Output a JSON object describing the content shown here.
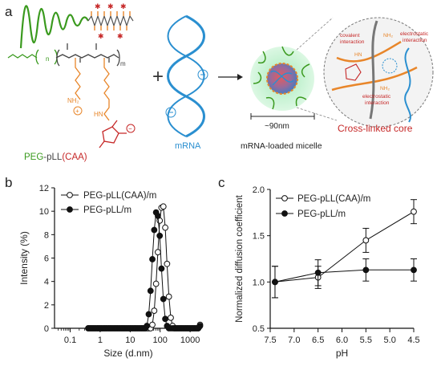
{
  "panel_a": {
    "panel_letter": "a",
    "polymer_label": {
      "peg": "PEG",
      "dash": "-",
      "pll": "pLL",
      "caa": "(CAA)"
    },
    "plus": "+",
    "mrna_label": "mRNA",
    "size_label": "~90nm",
    "micelle_label": "mRNA-loaded micelle",
    "core_label": "Cross-linked core",
    "inset": {
      "covalent": "covalent\ninteraction",
      "electrostatic_top": "electrostatic\ninteraction",
      "electrostatic_bottom": "electrostatic\ninteraction",
      "nh2": "NH₂",
      "hn": "HN"
    },
    "chem": {
      "n": "n",
      "m": "m",
      "nh2": "NH₂",
      "hn": "HN",
      "plus": "+",
      "minus": "−"
    },
    "colors": {
      "peg": "#3a9a1e",
      "pll": "#444444",
      "caa": "#c62828",
      "orange": "#e8862a",
      "mrna": "#2a8fd0",
      "micelle": "#b8f0c8"
    }
  },
  "panel_b": {
    "panel_letter": "b",
    "chart_data": {
      "type": "scatter",
      "xlabel": "Size (d.nm)",
      "ylabel": "Intensity (%)",
      "xscale": "log",
      "xlim": [
        0.03,
        2500
      ],
      "ylim": [
        0,
        12
      ],
      "xticks": [
        "0.1",
        "1",
        "10",
        "100",
        "1000"
      ],
      "yticks": [
        "0",
        "2",
        "4",
        "6",
        "8",
        "10",
        "12"
      ],
      "legend_position": "top-left",
      "series": [
        {
          "name": "PEG-pLL(CAA)/m",
          "marker": "open-circle",
          "x": [
            0.4,
            0.46,
            0.53,
            0.61,
            0.7,
            0.81,
            0.93,
            1.07,
            1.23,
            1.42,
            1.63,
            1.88,
            2.16,
            2.49,
            2.87,
            3.3,
            3.8,
            4.38,
            5.04,
            5.8,
            6.68,
            7.69,
            8.85,
            10.2,
            11.7,
            13.5,
            15.5,
            17.9,
            20.6,
            23.7,
            27.3,
            31.4,
            36.1,
            41.6,
            47.9,
            55.1,
            63.5,
            73.1,
            84.1,
            96.8,
            111,
            128,
            148,
            170,
            196,
            226,
            260,
            299,
            344,
            396,
            456,
            525,
            604,
            695,
            800,
            921,
            1060,
            1220,
            1405,
            1617,
            1862,
            2143
          ],
          "y": [
            0,
            0,
            0,
            0,
            0,
            0,
            0,
            0,
            0,
            0,
            0,
            0,
            0,
            0,
            0,
            0,
            0,
            0,
            0,
            0,
            0,
            0,
            0,
            0,
            0,
            0,
            0,
            0,
            0,
            0,
            0,
            0,
            0,
            0,
            0,
            0.3,
            1.5,
            3.8,
            6.5,
            9.2,
            10.3,
            10.4,
            8.6,
            5.5,
            2.7,
            0.9,
            0.2,
            0,
            0,
            0,
            0,
            0,
            0,
            0,
            0,
            0,
            0,
            0,
            0,
            0,
            0,
            0.3
          ]
        },
        {
          "name": "PEG-pLL/m",
          "marker": "filled-circle",
          "x": [
            0.4,
            0.46,
            0.53,
            0.61,
            0.7,
            0.81,
            0.93,
            1.07,
            1.23,
            1.42,
            1.63,
            1.88,
            2.16,
            2.49,
            2.87,
            3.3,
            3.8,
            4.38,
            5.04,
            5.8,
            6.68,
            7.69,
            8.85,
            10.2,
            11.7,
            13.5,
            15.5,
            17.9,
            20.6,
            23.7,
            27.3,
            31.4,
            36.1,
            41.6,
            47.9,
            55.1,
            63.5,
            73.1,
            84.1,
            96.8,
            111,
            128,
            148,
            170,
            196,
            226,
            260,
            299,
            344,
            396,
            456,
            525,
            604,
            695,
            800,
            921,
            1060,
            1220,
            1405,
            1617,
            1862,
            2143
          ],
          "y": [
            0,
            0,
            0,
            0,
            0,
            0,
            0,
            0,
            0,
            0,
            0,
            0,
            0,
            0,
            0,
            0,
            0,
            0,
            0,
            0,
            0,
            0,
            0,
            0,
            0,
            0,
            0,
            0,
            0,
            0,
            0,
            0,
            0.2,
            1.2,
            3.2,
            5.9,
            8.4,
            9.9,
            9.6,
            7.9,
            5.1,
            2.5,
            0.8,
            0.2,
            0,
            0,
            0,
            0,
            0,
            0,
            0,
            0,
            0,
            0,
            0,
            0,
            0,
            0,
            0,
            0,
            0,
            0.2
          ]
        }
      ]
    }
  },
  "panel_c": {
    "panel_letter": "c",
    "chart_data": {
      "type": "line",
      "xlabel": "pH",
      "ylabel": "Normalized diffusion coefficient",
      "x_reversed": true,
      "xlim": [
        7.5,
        4.5
      ],
      "ylim": [
        0.5,
        2.0
      ],
      "xticks": [
        "7.5",
        "7.0",
        "6.5",
        "6.0",
        "5.5",
        "5.0",
        "4.5"
      ],
      "yticks": [
        "0.5",
        "1.0",
        "1.5",
        "2.0"
      ],
      "legend_position": "top-left",
      "series": [
        {
          "name": "PEG-pLL(CAA)/m",
          "marker": "open-circle",
          "x": [
            7.4,
            6.5,
            5.5,
            4.5
          ],
          "y": [
            1.0,
            1.05,
            1.45,
            1.76
          ],
          "err": [
            0.17,
            0.12,
            0.13,
            0.13
          ]
        },
        {
          "name": "PEG-pLL/m",
          "marker": "filled-circle",
          "x": [
            7.4,
            6.5,
            5.5,
            4.5
          ],
          "y": [
            1.0,
            1.1,
            1.13,
            1.13
          ],
          "err": [
            0.17,
            0.14,
            0.12,
            0.12
          ]
        }
      ]
    }
  }
}
